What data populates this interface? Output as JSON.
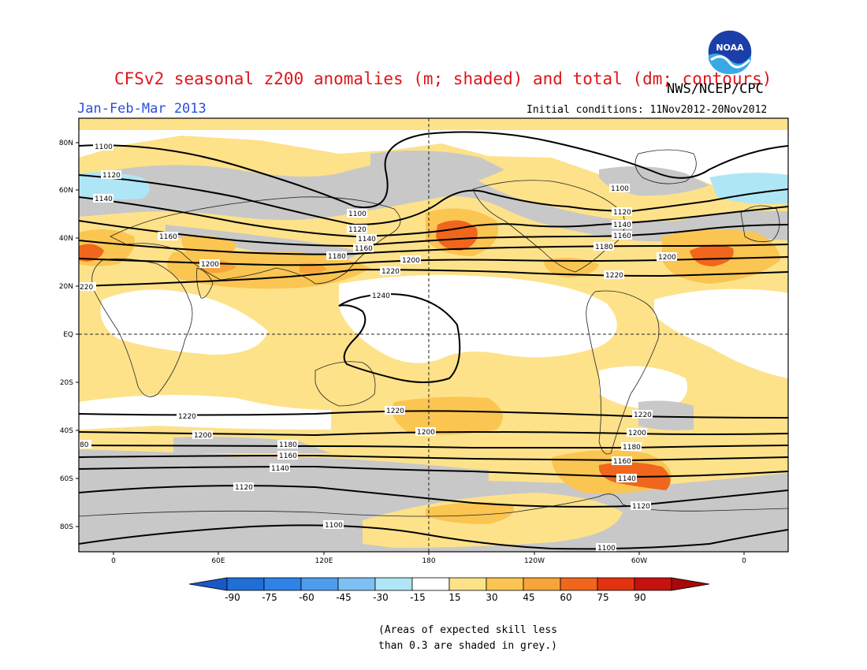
{
  "title": "CFSv2 seasonal z200 anomalies (m; shaded) and total (dm; contours)",
  "subtitle": "Jan-Feb-Mar 2013",
  "organization": "NWS/NCEP/CPC",
  "logo_text": "NOAA",
  "initial_conditions": "Initial conditions: 11Nov2012-20Nov2012",
  "footnote": {
    "line1": "(Areas of expected skill less",
    "line2": "than 0.3 are shaded in grey.)"
  },
  "map": {
    "lon_labels": [
      "0",
      "60E",
      "120E",
      "180",
      "120W",
      "60W",
      "0"
    ],
    "lat_labels": [
      "80N",
      "60N",
      "40N",
      "20N",
      "EQ",
      "20S",
      "40S",
      "60S",
      "80S"
    ],
    "contour_labels": {
      "c1100": "1100",
      "c1120": "1120",
      "c1140": "1140",
      "c1160": "1160",
      "c1180": "1180",
      "c1200": "1200",
      "c1220": "1220",
      "c1240": "1240",
      "cut_220": "220",
      "cut_80": "80"
    }
  },
  "colorbar": {
    "labels": [
      "-90",
      "-75",
      "-60",
      "-45",
      "-30",
      "-15",
      "15",
      "30",
      "45",
      "60",
      "75",
      "90"
    ],
    "colors": [
      "#1f6fd6",
      "#2f82e6",
      "#4f9ced",
      "#7fc0f2",
      "#afe6f5",
      "#ffffff",
      "#fde28a",
      "#fbc552",
      "#f7a43a",
      "#f0661c",
      "#e3320f",
      "#c4120e"
    ],
    "low_color": "#1a58c8",
    "high_color": "#a80a0a"
  },
  "colors": {
    "grey_skill": "#c8c8c8",
    "title": "#e0141b",
    "subtitle": "#2a4fd9"
  }
}
